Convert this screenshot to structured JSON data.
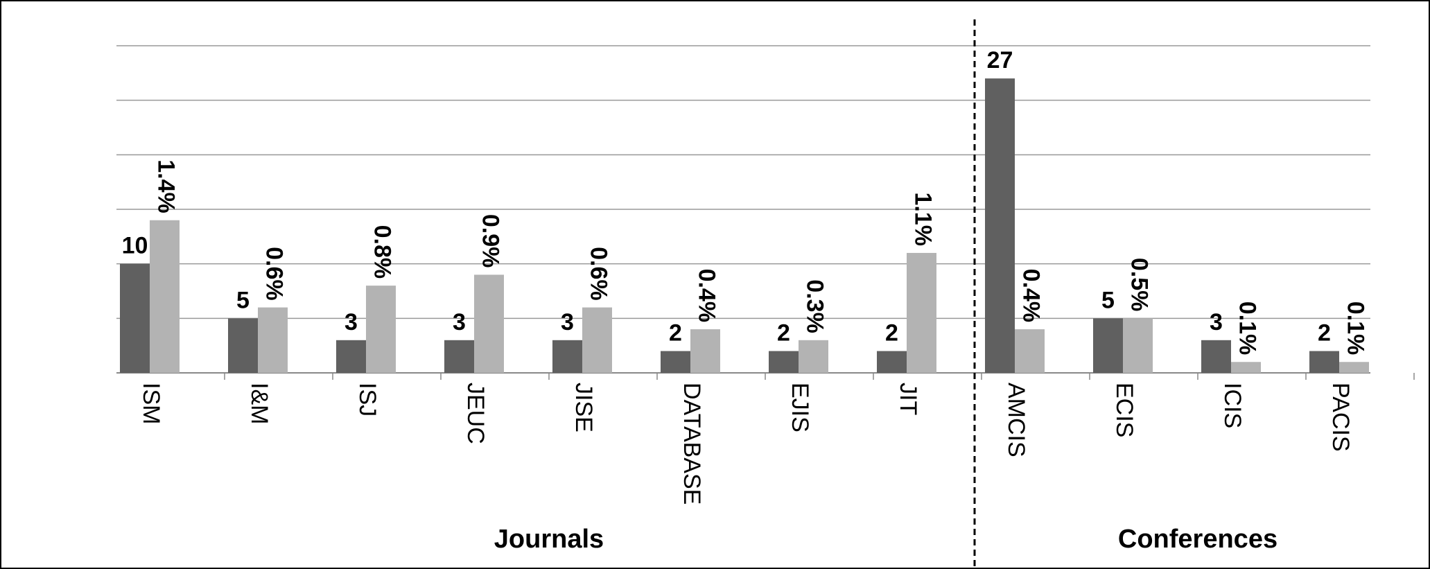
{
  "chart_data": {
    "type": "bar",
    "groups": [
      {
        "label": "Journals",
        "categories": [
          "ISM",
          "I&M",
          "ISJ",
          "JEUC",
          "JISE",
          "DATABASE",
          "EJIS",
          "JIT"
        ]
      },
      {
        "label": "Conferences",
        "categories": [
          "AMCIS",
          "ECIS",
          "ICIS",
          "PACIS"
        ]
      }
    ],
    "series": [
      {
        "color": "#606060",
        "values": [
          10,
          5,
          3,
          3,
          3,
          2,
          2,
          2,
          27,
          5,
          3,
          2
        ]
      },
      {
        "color": "#b3b3b3",
        "axis": "y2",
        "values": [
          1.4,
          0.6,
          0.8,
          0.9,
          0.6,
          0.4,
          0.3,
          1.1,
          0.4,
          0.5,
          0.1,
          0.1
        ],
        "value_labels": [
          "1.4%",
          "0.6%",
          "0.8%",
          "0.9%",
          "0.6%",
          "0.4%",
          "0.3%",
          "1.1%",
          "0.4%",
          "0.5%",
          "0.1%",
          "0.1%"
        ]
      }
    ],
    "ylim": [
      0,
      30
    ],
    "yticks": [
      0,
      5,
      10,
      15,
      20,
      25,
      30
    ],
    "y2lim": [
      0,
      3
    ],
    "grid": true,
    "show_ytick_labels": false,
    "group_divider": "dashed"
  }
}
